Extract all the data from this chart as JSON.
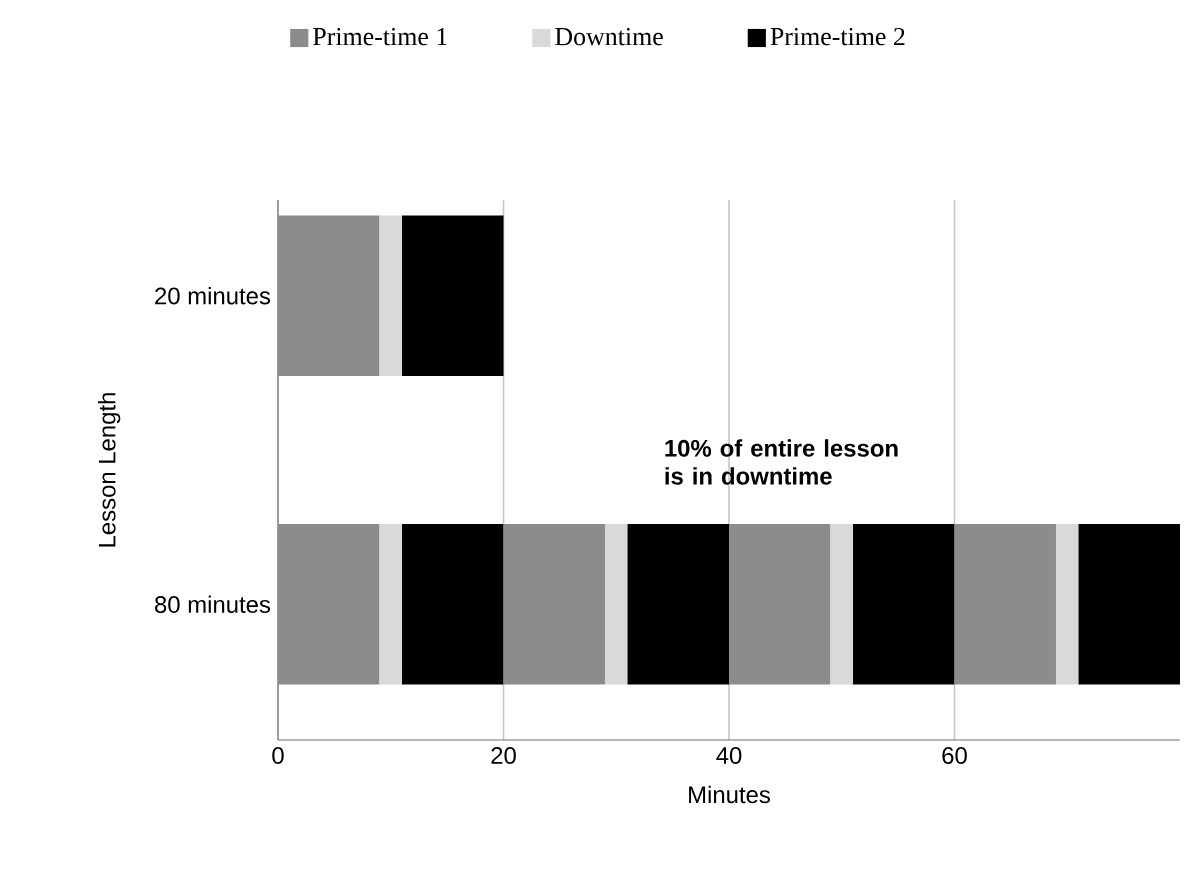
{
  "chart_data": {
    "type": "bar",
    "orientation": "horizontal",
    "stacked": true,
    "categories": [
      "20 minutes",
      "80 minutes"
    ],
    "series": [
      {
        "name": "Prime-time 1",
        "color": "#8c8c8c",
        "values": [
          9,
          9
        ]
      },
      {
        "name": "Downtime",
        "color": "#d9d9d9",
        "values": [
          2,
          2
        ]
      },
      {
        "name": "Prime-time 2",
        "color": "#000000",
        "values": [
          9,
          9
        ]
      },
      {
        "color": "#8c8c8c",
        "values": [
          null,
          9
        ]
      },
      {
        "color": "#d9d9d9",
        "values": [
          null,
          2
        ]
      },
      {
        "color": "#000000",
        "values": [
          null,
          9
        ]
      },
      {
        "color": "#8c8c8c",
        "values": [
          null,
          9
        ]
      },
      {
        "color": "#d9d9d9",
        "values": [
          null,
          2
        ]
      },
      {
        "color": "#000000",
        "values": [
          null,
          9
        ]
      },
      {
        "color": "#8c8c8c",
        "values": [
          null,
          9
        ]
      },
      {
        "color": "#d9d9d9",
        "values": [
          null,
          2
        ]
      },
      {
        "color": "#000000",
        "values": [
          null,
          9
        ]
      }
    ],
    "xlim": [
      0,
      80
    ],
    "xticks": [
      0,
      20,
      40,
      60
    ],
    "grid": "x",
    "legend": "top",
    "xlabel": "Minutes",
    "ylabel": "Lesson Length",
    "annotations": [
      "10% of entire lesson is in downtime"
    ]
  }
}
